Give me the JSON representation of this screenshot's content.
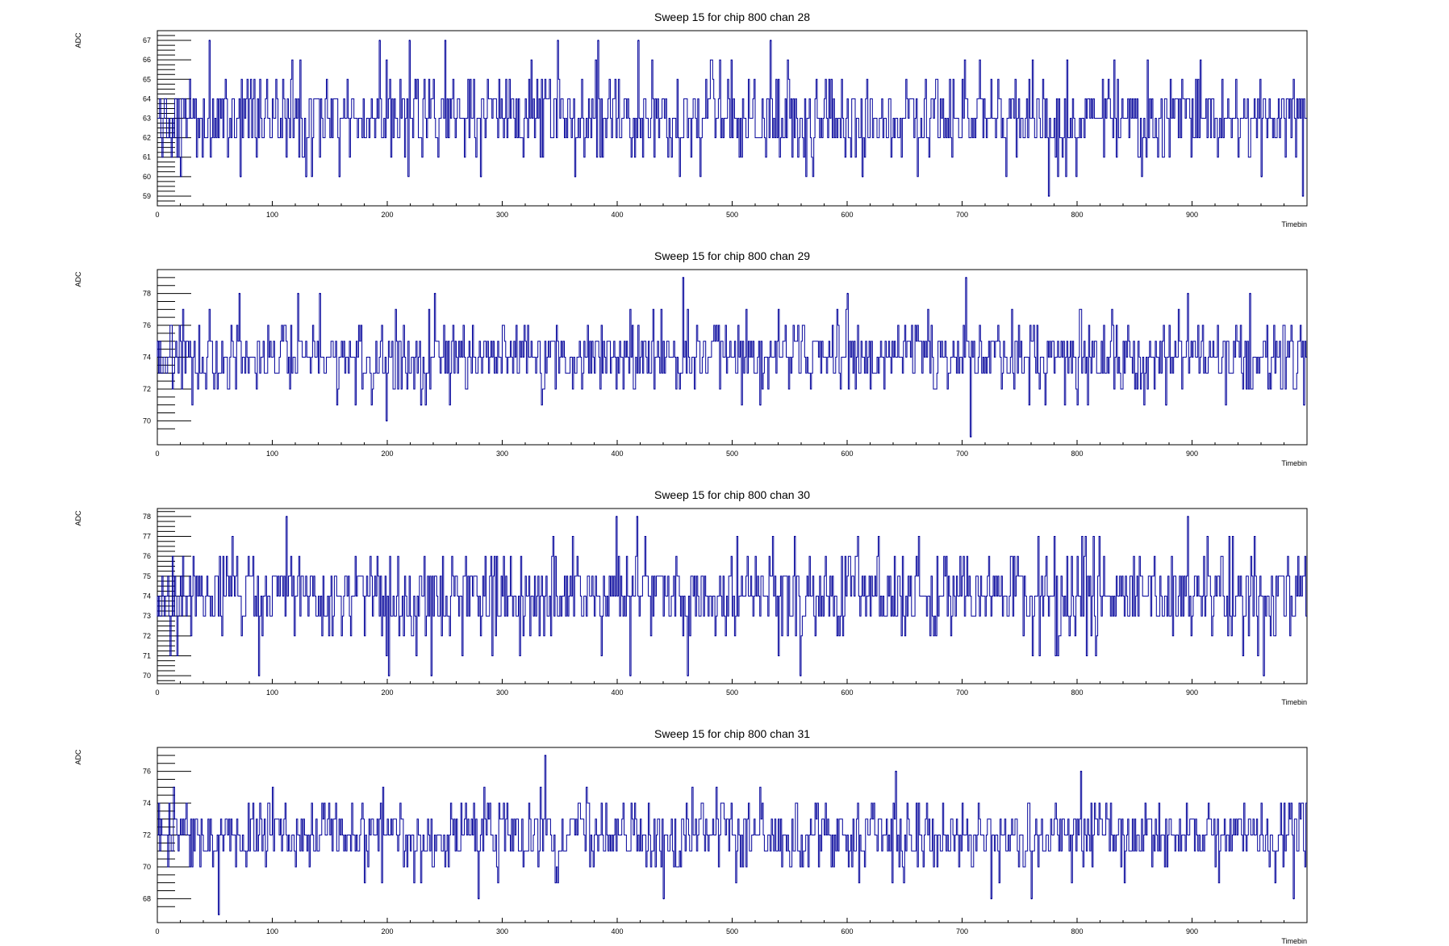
{
  "colors": {
    "line": "#000099",
    "axis": "#000000",
    "background": "#ffffff"
  },
  "chart_data": [
    {
      "type": "line",
      "title": "Sweep 15 for chip 800 chan 28",
      "xlabel": "Timebin",
      "ylabel": "ADC",
      "xlim": [
        0,
        1000
      ],
      "ylim": [
        58.5,
        67.5
      ],
      "x_ticks": [
        0,
        100,
        200,
        300,
        400,
        500,
        600,
        700,
        800,
        900
      ],
      "y_ticks": [
        59,
        60,
        61,
        62,
        63,
        64,
        65,
        66,
        67
      ],
      "baseline": 63,
      "dips": [
        {
          "x": 72,
          "y": 60
        },
        {
          "x": 129,
          "y": 60
        },
        {
          "x": 158,
          "y": 60
        },
        {
          "x": 281,
          "y": 60
        },
        {
          "x": 363,
          "y": 60
        },
        {
          "x": 613,
          "y": 60
        },
        {
          "x": 775,
          "y": 59
        },
        {
          "x": 960,
          "y": 60
        },
        {
          "x": 996,
          "y": 59
        }
      ],
      "peaks": [
        {
          "x": 45,
          "y": 67
        },
        {
          "x": 193,
          "y": 67
        },
        {
          "x": 219,
          "y": 67
        },
        {
          "x": 250,
          "y": 67
        },
        {
          "x": 348,
          "y": 67
        },
        {
          "x": 383,
          "y": 67
        },
        {
          "x": 418,
          "y": 67
        },
        {
          "x": 533,
          "y": 67
        }
      ],
      "grid": false
    },
    {
      "type": "line",
      "title": "Sweep 15 for chip 800 chan 29",
      "xlabel": "Timebin",
      "ylabel": "ADC",
      "xlim": [
        0,
        1000
      ],
      "ylim": [
        68.5,
        79.5
      ],
      "x_ticks": [
        0,
        100,
        200,
        300,
        400,
        500,
        600,
        700,
        800,
        900
      ],
      "y_ticks": [
        70,
        72,
        74,
        76,
        78
      ],
      "baseline": 74,
      "dips": [
        {
          "x": 199,
          "y": 70
        },
        {
          "x": 229,
          "y": 71
        },
        {
          "x": 524,
          "y": 71
        },
        {
          "x": 707,
          "y": 69
        },
        {
          "x": 877,
          "y": 71
        },
        {
          "x": 997,
          "y": 71
        }
      ],
      "peaks": [
        {
          "x": 71,
          "y": 78
        },
        {
          "x": 122,
          "y": 78
        },
        {
          "x": 141,
          "y": 78
        },
        {
          "x": 241,
          "y": 78
        },
        {
          "x": 457,
          "y": 79
        },
        {
          "x": 600,
          "y": 78
        },
        {
          "x": 703,
          "y": 79
        },
        {
          "x": 896,
          "y": 78
        },
        {
          "x": 950,
          "y": 78
        }
      ],
      "grid": false
    },
    {
      "type": "line",
      "title": "Sweep 15 for chip 800 chan 30",
      "xlabel": "Timebin",
      "ylabel": "ADC",
      "xlim": [
        0,
        1000
      ],
      "ylim": [
        69.6,
        78.4
      ],
      "x_ticks": [
        0,
        100,
        200,
        300,
        400,
        500,
        600,
        700,
        800,
        900
      ],
      "y_ticks": [
        70,
        71,
        72,
        73,
        74,
        75,
        76,
        77,
        78
      ],
      "baseline": 74,
      "dips": [
        {
          "x": 88,
          "y": 70
        },
        {
          "x": 201,
          "y": 70
        },
        {
          "x": 238,
          "y": 70
        },
        {
          "x": 411,
          "y": 70
        },
        {
          "x": 461,
          "y": 70
        },
        {
          "x": 559,
          "y": 70
        },
        {
          "x": 962,
          "y": 70
        }
      ],
      "peaks": [
        {
          "x": 112,
          "y": 78
        },
        {
          "x": 399,
          "y": 78
        },
        {
          "x": 417,
          "y": 78
        },
        {
          "x": 554,
          "y": 77
        },
        {
          "x": 896,
          "y": 78
        }
      ],
      "grid": false
    },
    {
      "type": "line",
      "title": "Sweep 15 for chip 800 chan 31",
      "xlabel": "Timebin",
      "ylabel": "ADC",
      "xlim": [
        0,
        1000
      ],
      "ylim": [
        66.5,
        77.5
      ],
      "x_ticks": [
        0,
        100,
        200,
        300,
        400,
        500,
        600,
        700,
        800,
        900
      ],
      "y_ticks": [
        68,
        70,
        72,
        74,
        76
      ],
      "baseline": 72,
      "dips": [
        {
          "x": 53,
          "y": 67
        },
        {
          "x": 279,
          "y": 68
        },
        {
          "x": 440,
          "y": 68
        },
        {
          "x": 725,
          "y": 68
        },
        {
          "x": 760,
          "y": 68
        },
        {
          "x": 988,
          "y": 68
        }
      ],
      "peaks": [
        {
          "x": 337,
          "y": 77
        },
        {
          "x": 642,
          "y": 76
        },
        {
          "x": 803,
          "y": 76
        }
      ],
      "grid": false
    }
  ]
}
